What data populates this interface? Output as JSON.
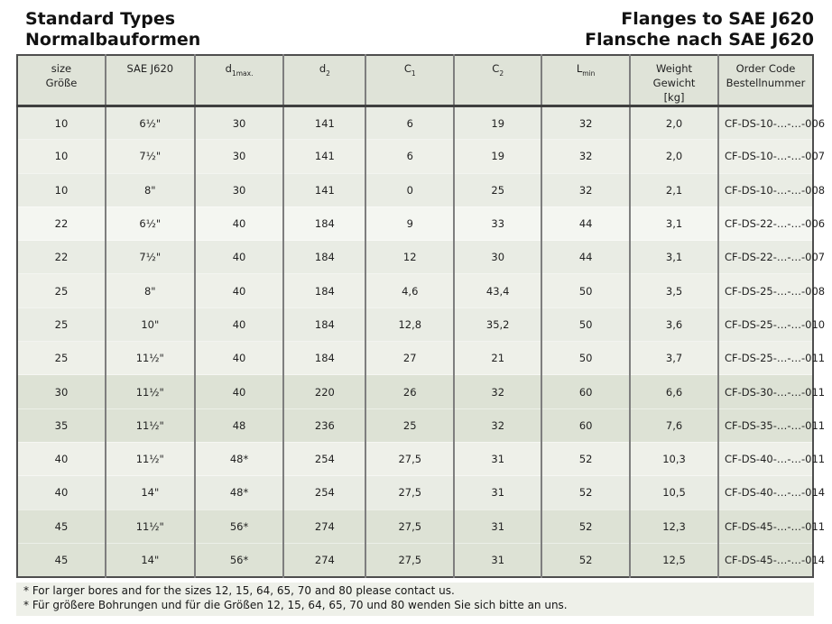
{
  "page": {
    "title_left_line1": "Standard Types",
    "title_left_line2": "Normalbauformen",
    "title_right_line1": "Flanges to SAE J620",
    "title_right_line2": "Flansche nach SAE J620"
  },
  "colors": {
    "table_header_bg": "#dfe3d8",
    "row_medium": "#e9ece4",
    "row_light": "#eef0e9",
    "row_extra_light": "#f4f6f1",
    "row_dark": "#dde2d5",
    "footnote_bg": "#eef0e9",
    "border_dark": "#4e4e4e",
    "border_gray": "#7e7e7e",
    "text": "#1f1f1f"
  },
  "table": {
    "columns": {
      "size_en": "size",
      "size_de": "Größe",
      "sae": "SAE J620",
      "d1_base": "d",
      "d1_sub": "1max.",
      "d2_base": "d",
      "d2_sub": "2",
      "c1_base": "C",
      "c1_sub": "1",
      "c2_base": "C",
      "c2_sub": "2",
      "lmin_base": "L",
      "lmin_sub": "min",
      "weight_en": "Weight",
      "weight_de": "Gewicht",
      "weight_unit": "[kg]",
      "order_en": "Order Code",
      "order_de": "Bestellnummer"
    },
    "rows": [
      {
        "size": "10",
        "sae": "6½\"",
        "d1": "30",
        "d2": "141",
        "c1": "6",
        "c2": "19",
        "lmin": "32",
        "weight": "2,0",
        "order": "CF-DS-10-…-…-006"
      },
      {
        "size": "10",
        "sae": "7½\"",
        "d1": "30",
        "d2": "141",
        "c1": "6",
        "c2": "19",
        "lmin": "32",
        "weight": "2,0",
        "order": "CF-DS-10-…-…-007"
      },
      {
        "size": "10",
        "sae": "8\"",
        "d1": "30",
        "d2": "141",
        "c1": "0",
        "c2": "25",
        "lmin": "32",
        "weight": "2,1",
        "order": "CF-DS-10-…-…-008"
      },
      {
        "size": "22",
        "sae": "6½\"",
        "d1": "40",
        "d2": "184",
        "c1": "9",
        "c2": "33",
        "lmin": "44",
        "weight": "3,1",
        "order": "CF-DS-22-…-…-006"
      },
      {
        "size": "22",
        "sae": "7½\"",
        "d1": "40",
        "d2": "184",
        "c1": "12",
        "c2": "30",
        "lmin": "44",
        "weight": "3,1",
        "order": "CF-DS-22-…-…-007"
      },
      {
        "size": "25",
        "sae": "8\"",
        "d1": "40",
        "d2": "184",
        "c1": "4,6",
        "c2": "43,4",
        "lmin": "50",
        "weight": "3,5",
        "order": "CF-DS-25-…-…-008"
      },
      {
        "size": "25",
        "sae": "10\"",
        "d1": "40",
        "d2": "184",
        "c1": "12,8",
        "c2": "35,2",
        "lmin": "50",
        "weight": "3,6",
        "order": "CF-DS-25-…-…-010"
      },
      {
        "size": "25",
        "sae": "11½\"",
        "d1": "40",
        "d2": "184",
        "c1": "27",
        "c2": "21",
        "lmin": "50",
        "weight": "3,7",
        "order": "CF-DS-25-…-…-011"
      },
      {
        "size": "30",
        "sae": "11½\"",
        "d1": "40",
        "d2": "220",
        "c1": "26",
        "c2": "32",
        "lmin": "60",
        "weight": "6,6",
        "order": "CF-DS-30-…-…-011"
      },
      {
        "size": "35",
        "sae": "11½\"",
        "d1": "48",
        "d2": "236",
        "c1": "25",
        "c2": "32",
        "lmin": "60",
        "weight": "7,6",
        "order": "CF-DS-35-…-…-011"
      },
      {
        "size": "40",
        "sae": "11½\"",
        "d1": "48*",
        "d2": "254",
        "c1": "27,5",
        "c2": "31",
        "lmin": "52",
        "weight": "10,3",
        "order": "CF-DS-40-…-…-011"
      },
      {
        "size": "40",
        "sae": "14\"",
        "d1": "48*",
        "d2": "254",
        "c1": "27,5",
        "c2": "31",
        "lmin": "52",
        "weight": "10,5",
        "order": "CF-DS-40-…-…-014"
      },
      {
        "size": "45",
        "sae": "11½\"",
        "d1": "56*",
        "d2": "274",
        "c1": "27,5",
        "c2": "31",
        "lmin": "52",
        "weight": "12,3",
        "order": "CF-DS-45-…-…-011"
      },
      {
        "size": "45",
        "sae": "14\"",
        "d1": "56*",
        "d2": "274",
        "c1": "27,5",
        "c2": "31",
        "lmin": "52",
        "weight": "12,5",
        "order": "CF-DS-45-…-…-014"
      }
    ]
  },
  "footnotes": {
    "en": "* For larger bores and for the sizes 12, 15, 64, 65, 70 and 80 please contact us.",
    "de": "* Für größere Bohrungen und für die Größen 12, 15, 64, 65, 70 und 80 wenden Sie sich bitte an uns."
  }
}
